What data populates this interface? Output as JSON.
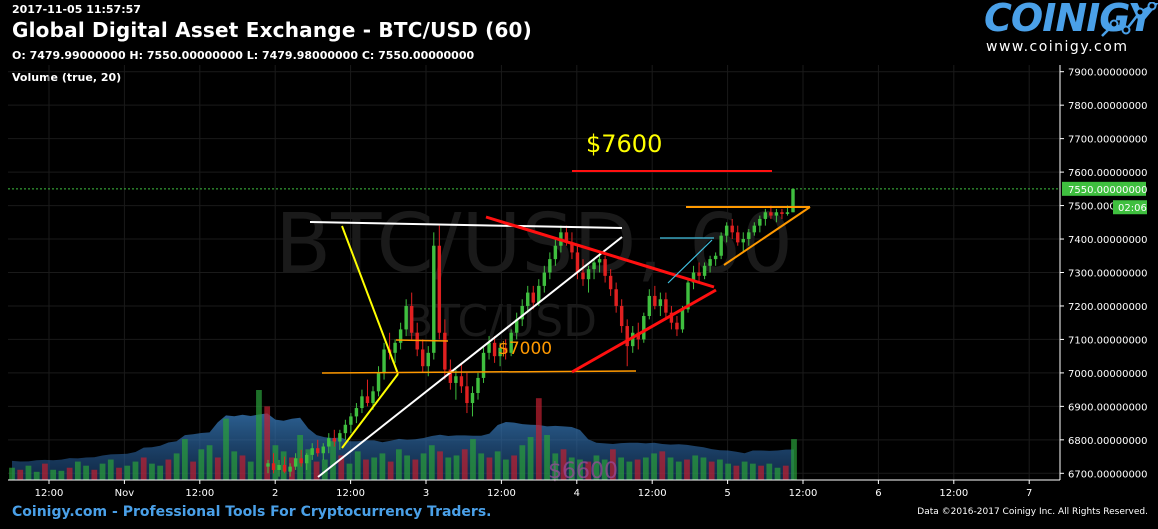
{
  "header": {
    "timestamp": "2017-11-05 11:57:57",
    "title": "Global Digital Asset Exchange - BTC/USD (60)",
    "ohlc": "O: 7479.99000000 H: 7550.00000000 L: 7479.98000000 C: 7550.00000000",
    "volume_label": "Volume (true, 20)"
  },
  "logo": {
    "name": "COINIGY",
    "url": "www.coinigy.com"
  },
  "watermark": {
    "main": "BTC/USD, 60",
    "sub": "BTC/USD"
  },
  "footer": {
    "brand": "Coinigy.com",
    "tagline": " - Professional Tools For Cryptocurrency Traders.",
    "copyright": "Data ©2016-2017 Coinigy Inc. All Rights Reserved."
  },
  "colors": {
    "up": "#3fbf3f",
    "down": "#e02020",
    "accent": "#4aa0e8",
    "price_tag": "#3fbf3f",
    "annotation_yellow": "#ffff00",
    "annotation_orange": "#ff9900"
  },
  "chart_data": {
    "type": "candlestick",
    "title": "Global Digital Asset Exchange - BTC/USD (60)",
    "ylim": [
      6680,
      7920
    ],
    "yticks": [
      "7900.00000000",
      "7800.00000000",
      "7700.00000000",
      "7600.00000000",
      "7500.00000000",
      "7400.00000000",
      "7300.00000000",
      "7200.00000000",
      "7100.00000000",
      "7000.00000000",
      "6900.00000000",
      "6800.00000000",
      "6700.00000000"
    ],
    "xticks": [
      "12:00",
      "Nov",
      "12:00",
      "2",
      "12:00",
      "3",
      "12:00",
      "4",
      "12:00",
      "5",
      "12:00",
      "6",
      "12:00",
      "7"
    ],
    "last_price": "7550.00000000",
    "last_price_value": 7550,
    "countdown": "02:06",
    "grid": true,
    "annotations": [
      {
        "text": "$7600",
        "value": 7600,
        "color": "#ffff00"
      },
      {
        "text": "$7000",
        "value": 7000,
        "color": "#ff9900"
      },
      {
        "text": "$6600",
        "value": 6600,
        "color": "#b060b0"
      }
    ],
    "candles": [
      [
        6720,
        6740,
        6700,
        6730
      ],
      [
        6730,
        6760,
        6700,
        6710
      ],
      [
        6710,
        6740,
        6690,
        6725
      ],
      [
        6725,
        6750,
        6700,
        6705
      ],
      [
        6705,
        6730,
        6690,
        6720
      ],
      [
        6720,
        6760,
        6710,
        6745
      ],
      [
        6745,
        6770,
        6720,
        6730
      ],
      [
        6730,
        6760,
        6710,
        6755
      ],
      [
        6755,
        6790,
        6740,
        6775
      ],
      [
        6775,
        6800,
        6750,
        6760
      ],
      [
        6760,
        6790,
        6740,
        6780
      ],
      [
        6780,
        6820,
        6760,
        6805
      ],
      [
        6805,
        6830,
        6780,
        6795
      ],
      [
        6795,
        6830,
        6770,
        6820
      ],
      [
        6820,
        6860,
        6800,
        6845
      ],
      [
        6845,
        6880,
        6820,
        6870
      ],
      [
        6870,
        6910,
        6850,
        6895
      ],
      [
        6895,
        6950,
        6880,
        6930
      ],
      [
        6930,
        6980,
        6900,
        6910
      ],
      [
        6910,
        6960,
        6890,
        6945
      ],
      [
        6945,
        7020,
        6930,
        7000
      ],
      [
        7000,
        7090,
        6980,
        7070
      ],
      [
        7070,
        7120,
        7040,
        7060
      ],
      [
        7060,
        7100,
        7030,
        7090
      ],
      [
        7090,
        7150,
        7070,
        7130
      ],
      [
        7130,
        7220,
        7110,
        7200
      ],
      [
        7200,
        7240,
        7100,
        7120
      ],
      [
        7120,
        7150,
        7050,
        7070
      ],
      [
        7070,
        7100,
        7000,
        7020
      ],
      [
        7020,
        7080,
        6990,
        7060
      ],
      [
        7060,
        7420,
        7040,
        7380
      ],
      [
        7380,
        7440,
        7100,
        7120
      ],
      [
        7120,
        7160,
        6980,
        7010
      ],
      [
        7010,
        7040,
        6950,
        6970
      ],
      [
        6970,
        7010,
        6920,
        6990
      ],
      [
        6990,
        7030,
        6940,
        6960
      ],
      [
        6960,
        7000,
        6880,
        6910
      ],
      [
        6910,
        6960,
        6870,
        6940
      ],
      [
        6940,
        7000,
        6920,
        6985
      ],
      [
        6985,
        7080,
        6970,
        7060
      ],
      [
        7060,
        7110,
        7040,
        7090
      ],
      [
        7090,
        7110,
        7030,
        7050
      ],
      [
        7050,
        7090,
        7020,
        7075
      ],
      [
        7075,
        7100,
        7040,
        7060
      ],
      [
        7060,
        7130,
        7050,
        7120
      ],
      [
        7120,
        7180,
        7100,
        7160
      ],
      [
        7160,
        7220,
        7140,
        7200
      ],
      [
        7200,
        7260,
        7180,
        7240
      ],
      [
        7240,
        7260,
        7190,
        7210
      ],
      [
        7210,
        7280,
        7200,
        7260
      ],
      [
        7260,
        7320,
        7240,
        7300
      ],
      [
        7300,
        7360,
        7280,
        7340
      ],
      [
        7340,
        7400,
        7320,
        7380
      ],
      [
        7380,
        7440,
        7360,
        7420
      ],
      [
        7420,
        7440,
        7380,
        7390
      ],
      [
        7390,
        7420,
        7340,
        7360
      ],
      [
        7360,
        7380,
        7280,
        7300
      ],
      [
        7300,
        7340,
        7260,
        7280
      ],
      [
        7280,
        7320,
        7240,
        7310
      ],
      [
        7310,
        7340,
        7280,
        7330
      ],
      [
        7330,
        7360,
        7300,
        7340
      ],
      [
        7340,
        7350,
        7270,
        7290
      ],
      [
        7290,
        7310,
        7230,
        7250
      ],
      [
        7250,
        7270,
        7180,
        7200
      ],
      [
        7200,
        7220,
        7120,
        7140
      ],
      [
        7140,
        7160,
        7020,
        7080
      ],
      [
        7080,
        7140,
        7060,
        7120
      ],
      [
        7120,
        7150,
        7070,
        7100
      ],
      [
        7100,
        7180,
        7090,
        7170
      ],
      [
        7170,
        7250,
        7160,
        7230
      ],
      [
        7230,
        7260,
        7190,
        7200
      ],
      [
        7200,
        7240,
        7170,
        7220
      ],
      [
        7220,
        7240,
        7160,
        7180
      ],
      [
        7180,
        7200,
        7130,
        7150
      ],
      [
        7150,
        7170,
        7110,
        7130
      ],
      [
        7130,
        7200,
        7120,
        7190
      ],
      [
        7190,
        7280,
        7180,
        7270
      ],
      [
        7270,
        7320,
        7250,
        7300
      ],
      [
        7300,
        7330,
        7270,
        7290
      ],
      [
        7290,
        7330,
        7280,
        7320
      ],
      [
        7320,
        7350,
        7300,
        7340
      ],
      [
        7340,
        7360,
        7320,
        7350
      ],
      [
        7350,
        7420,
        7340,
        7410
      ],
      [
        7410,
        7450,
        7390,
        7440
      ],
      [
        7440,
        7460,
        7400,
        7420
      ],
      [
        7420,
        7440,
        7380,
        7390
      ],
      [
        7390,
        7420,
        7360,
        7400
      ],
      [
        7400,
        7430,
        7380,
        7420
      ],
      [
        7420,
        7450,
        7410,
        7440
      ],
      [
        7440,
        7470,
        7420,
        7460
      ],
      [
        7460,
        7490,
        7440,
        7480
      ],
      [
        7480,
        7500,
        7460,
        7470
      ],
      [
        7470,
        7490,
        7450,
        7480
      ],
      [
        7480,
        7490,
        7460,
        7475
      ],
      [
        7475,
        7500,
        7470,
        7480
      ],
      [
        7480,
        7550,
        7480,
        7550
      ]
    ],
    "volumes": [
      12,
      10,
      14,
      8,
      16,
      10,
      9,
      12,
      18,
      14,
      10,
      16,
      20,
      12,
      14,
      18,
      22,
      16,
      14,
      20,
      26,
      40,
      18,
      30,
      34,
      22,
      60,
      28,
      24,
      18,
      88,
      72,
      34,
      28,
      22,
      44,
      30,
      18,
      20,
      38,
      24,
      16,
      28,
      20,
      22,
      26,
      18,
      30,
      24,
      20,
      26,
      34,
      28,
      22,
      24,
      30,
      40,
      26,
      22,
      28,
      20,
      24,
      34,
      42,
      80,
      44,
      26,
      30,
      22,
      20,
      18,
      24,
      20,
      30,
      22,
      18,
      20,
      22,
      26,
      28,
      22,
      18,
      20,
      24,
      22,
      18,
      20,
      16,
      14,
      18,
      16,
      14,
      16,
      12,
      14,
      40
    ]
  }
}
